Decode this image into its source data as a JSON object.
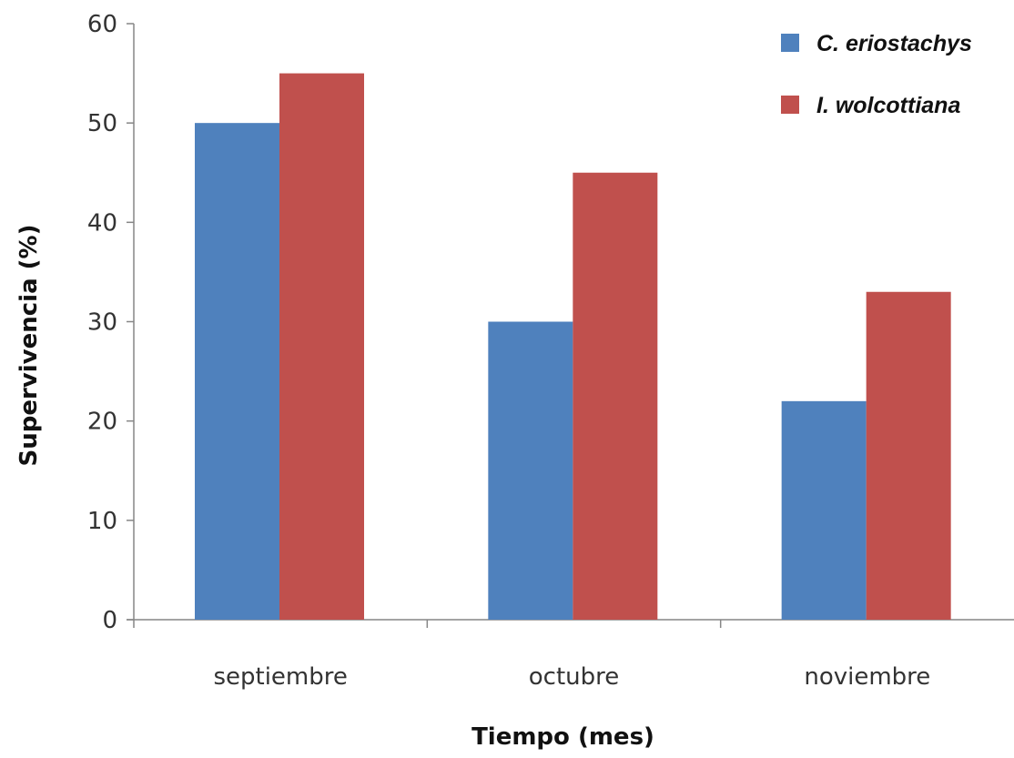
{
  "chart_data": {
    "type": "bar",
    "title": "",
    "xlabel": "Tiempo (mes)",
    "ylabel": "Supervivencia (%)",
    "ylim": [
      0,
      60
    ],
    "yticks": [
      0,
      10,
      20,
      30,
      40,
      50,
      60
    ],
    "categories": [
      "septiembre",
      "octubre",
      "noviembre"
    ],
    "series": [
      {
        "name": "C. eriostachys",
        "values": [
          50,
          30,
          22
        ],
        "color": "#4F81BD"
      },
      {
        "name": "I. wolcottiana",
        "values": [
          55,
          45,
          33
        ],
        "color": "#C0504D"
      }
    ],
    "grid": false,
    "legend_position": "top-right"
  }
}
